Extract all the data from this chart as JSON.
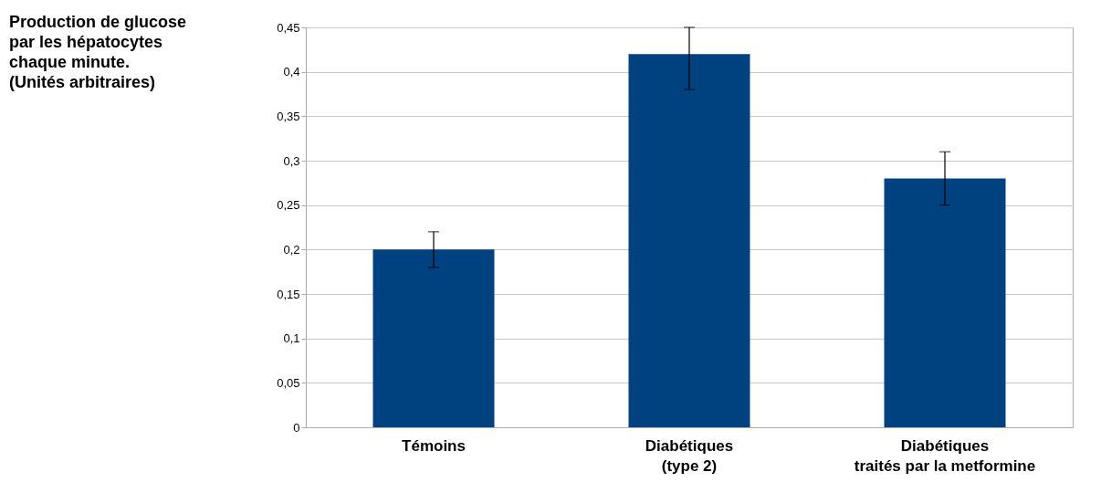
{
  "chart_data": {
    "type": "bar",
    "annotations": [
      "Production de glucose\npar les hépatocytes\nchaque minute.\n(Unités arbitraires)"
    ],
    "categories": [
      "Témoins",
      "Diabétiques\n(type 2)",
      "Diabétiques\ntraités par la metformine"
    ],
    "values": [
      0.2,
      0.42,
      0.28
    ],
    "errors": [
      [
        0.18,
        0.22
      ],
      [
        0.38,
        0.45
      ],
      [
        0.25,
        0.31
      ]
    ],
    "color": "#00427f",
    "ylim": [
      0,
      0.45
    ],
    "yticks": [
      0,
      {
        "value": 0.05,
        "label": "0,05"
      },
      {
        "value": 0.1,
        "label": "0,1"
      },
      {
        "value": 0.15,
        "label": "0,15"
      },
      {
        "value": 0.2,
        "label": "0,2"
      },
      {
        "value": 0.25,
        "label": "0,25"
      },
      {
        "value": 0.3,
        "label": "0,3"
      },
      {
        "value": 0.35,
        "label": "0,35"
      },
      {
        "value": 0.4,
        "label": "0,4"
      },
      {
        "value": 0.45,
        "label": "0,45"
      }
    ],
    "grid": "y"
  }
}
